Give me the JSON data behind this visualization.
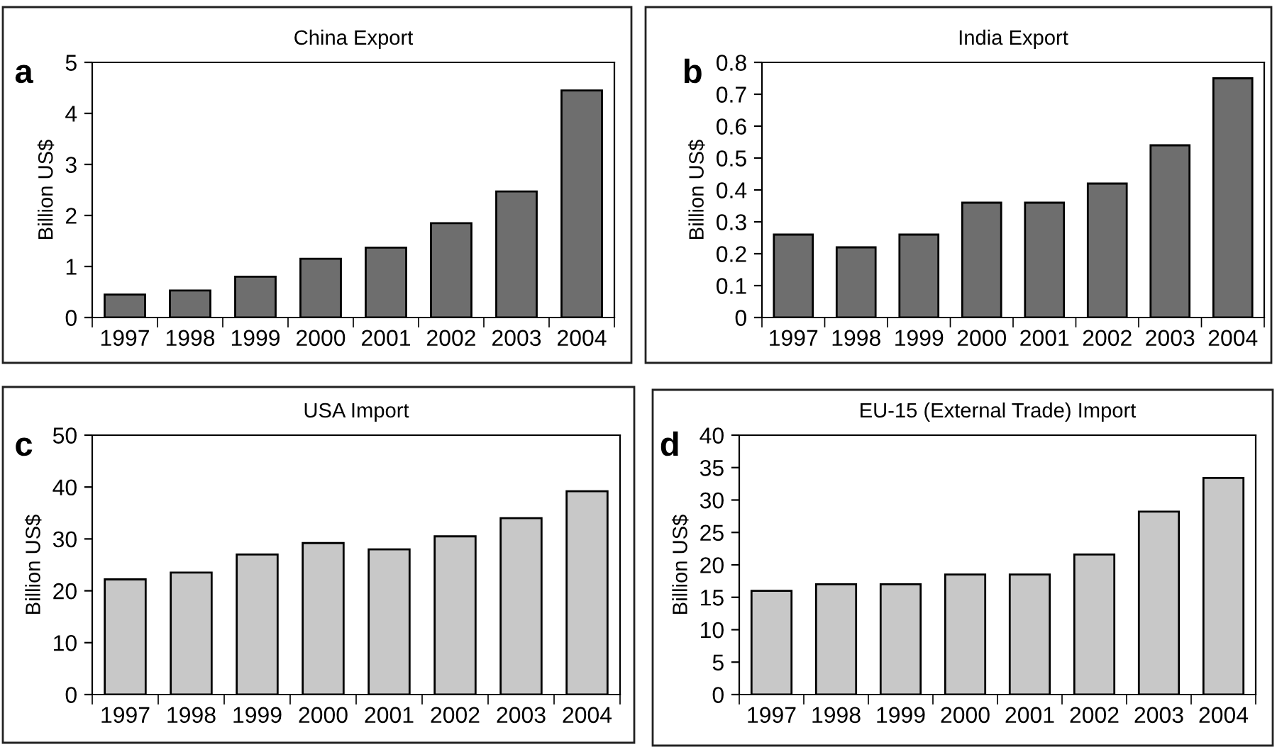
{
  "chart_data": [
    {
      "type": "bar",
      "title": "China Export",
      "ylabel": "Billion US$",
      "annotations": [
        "a"
      ],
      "categories": [
        "1997",
        "1998",
        "1999",
        "2000",
        "2001",
        "2002",
        "2003",
        "2004"
      ],
      "values": [
        0.45,
        0.53,
        0.8,
        1.15,
        1.37,
        1.85,
        2.47,
        4.45
      ],
      "color": "#6e6e6e",
      "ylim": [
        0,
        5
      ],
      "yticks": [
        0,
        1,
        2,
        3,
        4,
        5
      ],
      "grid": false
    },
    {
      "type": "bar",
      "title": "India Export",
      "ylabel": "Billion US$",
      "annotations": [
        "b"
      ],
      "categories": [
        "1997",
        "1998",
        "1999",
        "2000",
        "2001",
        "2002",
        "2003",
        "2004"
      ],
      "values": [
        0.26,
        0.22,
        0.26,
        0.36,
        0.36,
        0.42,
        0.54,
        0.75
      ],
      "color": "#6e6e6e",
      "ylim": [
        0,
        0.8
      ],
      "yticks": [
        0,
        0.1,
        0.2,
        0.3,
        0.4,
        0.5,
        0.6,
        0.7,
        0.8
      ],
      "grid": false
    },
    {
      "type": "bar",
      "title": "USA Import",
      "ylabel": "Billion US$",
      "annotations": [
        "c"
      ],
      "categories": [
        "1997",
        "1998",
        "1999",
        "2000",
        "2001",
        "2002",
        "2003",
        "2004"
      ],
      "values": [
        22.2,
        23.5,
        27,
        29.2,
        28,
        30.5,
        34,
        39.2
      ],
      "color": "#c8c8c8",
      "ylim": [
        0,
        50
      ],
      "yticks": [
        0,
        10,
        20,
        30,
        40,
        50
      ],
      "grid": false
    },
    {
      "type": "bar",
      "title": "EU-15 (External Trade) Import",
      "ylabel": "Billion US$",
      "annotations": [
        "d"
      ],
      "categories": [
        "1997",
        "1998",
        "1999",
        "2000",
        "2001",
        "2002",
        "2003",
        "2004"
      ],
      "values": [
        16,
        17,
        17,
        18.5,
        18.5,
        21.6,
        28.2,
        33.4
      ],
      "color": "#c8c8c8",
      "ylim": [
        0,
        40
      ],
      "yticks": [
        0,
        5,
        10,
        15,
        20,
        25,
        30,
        35,
        40
      ],
      "grid": false
    }
  ]
}
